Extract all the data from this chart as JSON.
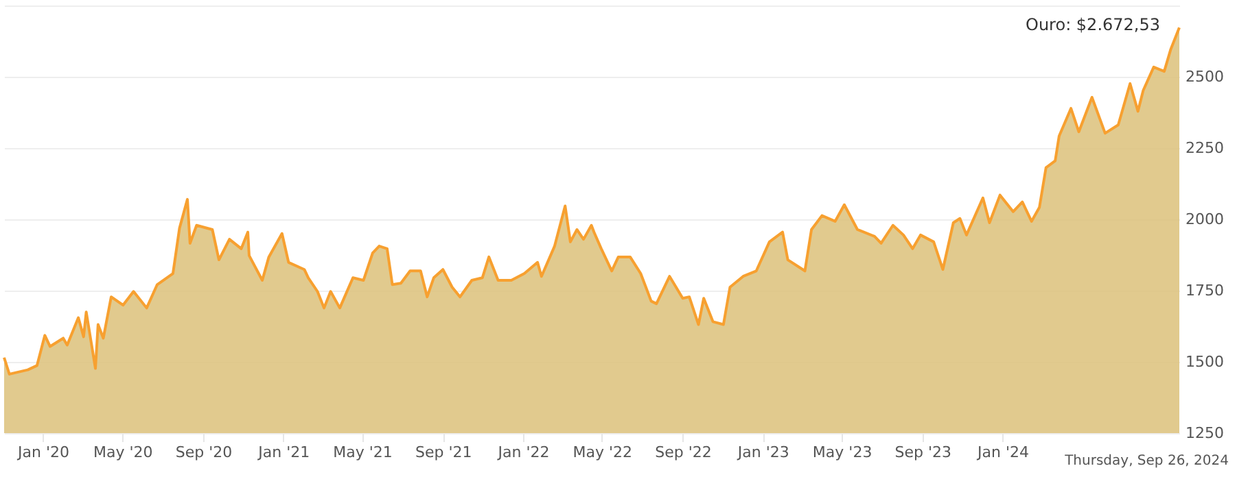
{
  "chart_data": {
    "type": "area",
    "x": [
      "2019-11-03",
      "2019-11-11",
      "2019-12-09",
      "2019-12-23",
      "2020-01-04",
      "2020-01-12",
      "2020-02-01",
      "2020-02-07",
      "2020-02-24",
      "2020-03-03",
      "2020-03-07",
      "2020-03-21",
      "2020-03-25",
      "2020-04-02",
      "2020-04-14",
      "2020-05-02",
      "2020-05-18",
      "2020-06-07",
      "2020-06-23",
      "2020-07-17",
      "2020-07-27",
      "2020-08-08",
      "2020-08-12",
      "2020-08-22",
      "2020-09-15",
      "2020-09-25",
      "2020-10-11",
      "2020-10-29",
      "2020-11-08",
      "2020-11-10",
      "2020-11-30",
      "2020-12-10",
      "2020-12-30",
      "2021-01-09",
      "2021-02-02",
      "2021-02-08",
      "2021-02-22",
      "2021-03-04",
      "2021-03-14",
      "2021-03-28",
      "2021-04-17",
      "2021-05-03",
      "2021-05-17",
      "2021-05-27",
      "2021-06-08",
      "2021-06-16",
      "2021-06-29",
      "2021-07-13",
      "2021-07-29",
      "2021-08-08",
      "2021-08-18",
      "2021-09-01",
      "2021-09-15",
      "2021-09-27",
      "2021-10-15",
      "2021-10-31",
      "2021-11-10",
      "2021-11-24",
      "2021-12-14",
      "2022-01-03",
      "2022-01-23",
      "2022-01-29",
      "2022-02-18",
      "2022-03-06",
      "2022-03-14",
      "2022-03-24",
      "2022-04-03",
      "2022-04-15",
      "2022-04-19",
      "2022-04-30",
      "2022-05-16",
      "2022-05-26",
      "2022-06-13",
      "2022-06-29",
      "2022-07-15",
      "2022-07-23",
      "2022-08-12",
      "2022-09-01",
      "2022-09-11",
      "2022-09-25",
      "2022-10-03",
      "2022-10-17",
      "2022-11-02",
      "2022-11-12",
      "2022-12-02",
      "2022-12-22",
      "2023-01-11",
      "2023-01-31",
      "2023-02-08",
      "2023-03-06",
      "2023-03-16",
      "2023-04-01",
      "2023-04-21",
      "2023-05-05",
      "2023-05-25",
      "2023-06-20",
      "2023-06-30",
      "2023-07-18",
      "2023-08-03",
      "2023-08-17",
      "2023-08-29",
      "2023-09-18",
      "2023-10-02",
      "2023-10-18",
      "2023-10-28",
      "2023-11-07",
      "2023-12-02",
      "2023-12-12",
      "2023-12-28",
      "2024-01-17",
      "2024-01-31",
      "2024-02-14",
      "2024-02-26",
      "2024-03-07",
      "2024-03-21",
      "2024-03-27",
      "2024-04-14",
      "2024-04-26",
      "2024-05-16",
      "2024-06-05",
      "2024-06-25",
      "2024-07-13",
      "2024-07-25",
      "2024-08-02",
      "2024-08-18",
      "2024-09-03",
      "2024-09-13",
      "2024-09-26"
    ],
    "series": [
      {
        "color": "#f7a030",
        "values": [
          1515,
          1457,
          1472,
          1487,
          1593,
          1554,
          1583,
          1559,
          1655,
          1588,
          1675,
          1477,
          1631,
          1583,
          1728,
          1699,
          1747,
          1689,
          1771,
          1810,
          1969,
          2070,
          1916,
          1979,
          1964,
          1858,
          1930,
          1897,
          1955,
          1873,
          1786,
          1868,
          1950,
          1849,
          1824,
          1795,
          1747,
          1689,
          1747,
          1689,
          1795,
          1786,
          1882,
          1906,
          1897,
          1771,
          1776,
          1819,
          1819,
          1728,
          1795,
          1824,
          1762,
          1728,
          1786,
          1795,
          1868,
          1786,
          1786,
          1810,
          1849,
          1800,
          1906,
          2047,
          1921,
          1964,
          1930,
          1979,
          1955,
          1897,
          1819,
          1868,
          1868,
          1810,
          1713,
          1704,
          1800,
          1723,
          1728,
          1631,
          1723,
          1641,
          1631,
          1762,
          1800,
          1819,
          1921,
          1955,
          1858,
          1819,
          1964,
          2013,
          1993,
          2051,
          1964,
          1940,
          1916,
          1979,
          1945,
          1897,
          1945,
          1921,
          1824,
          1988,
          2003,
          1945,
          2075,
          1988,
          2085,
          2027,
          2061,
          1993,
          2042,
          2181,
          2205,
          2292,
          2389,
          2307,
          2428,
          2302,
          2331,
          2476,
          2379,
          2452,
          2534,
          2519,
          2597,
          2672.53
        ]
      }
    ],
    "xlim": [
      "2019-11-03",
      "2024-09-26"
    ],
    "xticks": [
      {
        "value": "2020-01",
        "label": "Jan '20"
      },
      {
        "value": "2020-05",
        "label": "May '20"
      },
      {
        "value": "2020-09",
        "label": "Sep '20"
      },
      {
        "value": "2021-01",
        "label": "Jan '21"
      },
      {
        "value": "2021-05",
        "label": "May '21"
      },
      {
        "value": "2021-09",
        "label": "Sep '21"
      },
      {
        "value": "2022-01",
        "label": "Jan '22"
      },
      {
        "value": "2022-05",
        "label": "May '22"
      },
      {
        "value": "2022-09",
        "label": "Sep '22"
      },
      {
        "value": "2023-01",
        "label": "Jan '23"
      },
      {
        "value": "2023-05",
        "label": "May '23"
      },
      {
        "value": "2023-09",
        "label": "Sep '23"
      },
      {
        "value": "2024-01",
        "label": "Jan '24"
      }
    ],
    "ylim": [
      1250,
      2750
    ],
    "yticks": [
      1250,
      1500,
      1750,
      2000,
      2250,
      2500,
      {
        "value": 2750,
        "label": null
      }
    ],
    "grid": "y",
    "marker": "none",
    "annotations": [
      {
        "text": "Ouro: $2.672,53",
        "x": "2024-09-26",
        "y": 2672.53
      },
      "Thursday, Sep 26, 2024"
    ]
  }
}
